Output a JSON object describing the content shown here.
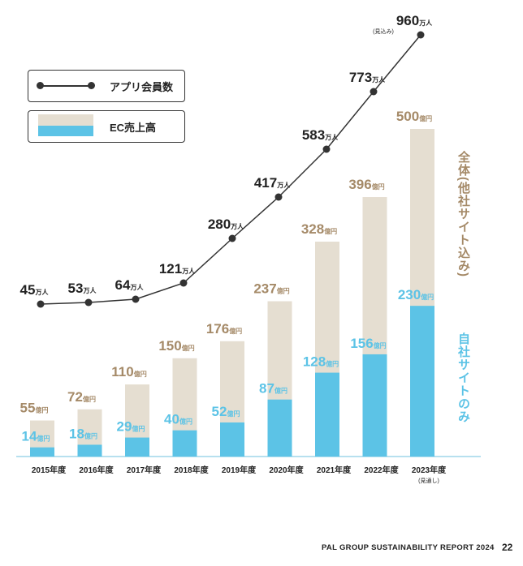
{
  "chart_data": {
    "type": "bar+line",
    "categories": [
      "2015年度",
      "2016年度",
      "2017年度",
      "2018年度",
      "2019年度",
      "2020年度",
      "2021年度",
      "2022年度",
      "2023年度"
    ],
    "category_note_last": "(見通し)",
    "series": [
      {
        "name": "アプリ会員数",
        "chart": "line",
        "unit": "万人",
        "values": [
          45,
          53,
          64,
          121,
          280,
          417,
          583,
          773,
          960
        ],
        "last_point_note": "(見込み)"
      },
      {
        "name": "全体(他社サイト込み)",
        "chart": "bar",
        "unit": "億円",
        "values": [
          55,
          72,
          110,
          150,
          176,
          237,
          328,
          396,
          500
        ]
      },
      {
        "name": "自社サイトのみ",
        "chart": "bar",
        "unit": "億円",
        "values": [
          14,
          18,
          29,
          40,
          52,
          87,
          128,
          156,
          230
        ]
      }
    ],
    "bar_legend_label": "EC売上高",
    "ylim_bars": [
      0,
      500
    ],
    "grid": false,
    "legend_placement": "top-left"
  },
  "colors": {
    "total_bar": "#e5ded1",
    "own_bar": "#5cc3e6",
    "total_label": "#a58a68",
    "own_label": "#5cc3e6",
    "line": "#333333",
    "baseline": "#9fd6ea"
  },
  "legend": {
    "line_label": "アプリ会員数",
    "bar_label": "EC売上高"
  },
  "side_labels": {
    "total": "全体(他社サイト込み)",
    "own": "自社サイトのみ"
  },
  "footer": {
    "title": "PAL GROUP SUSTAINABILITY REPORT 2024",
    "page": "22"
  }
}
